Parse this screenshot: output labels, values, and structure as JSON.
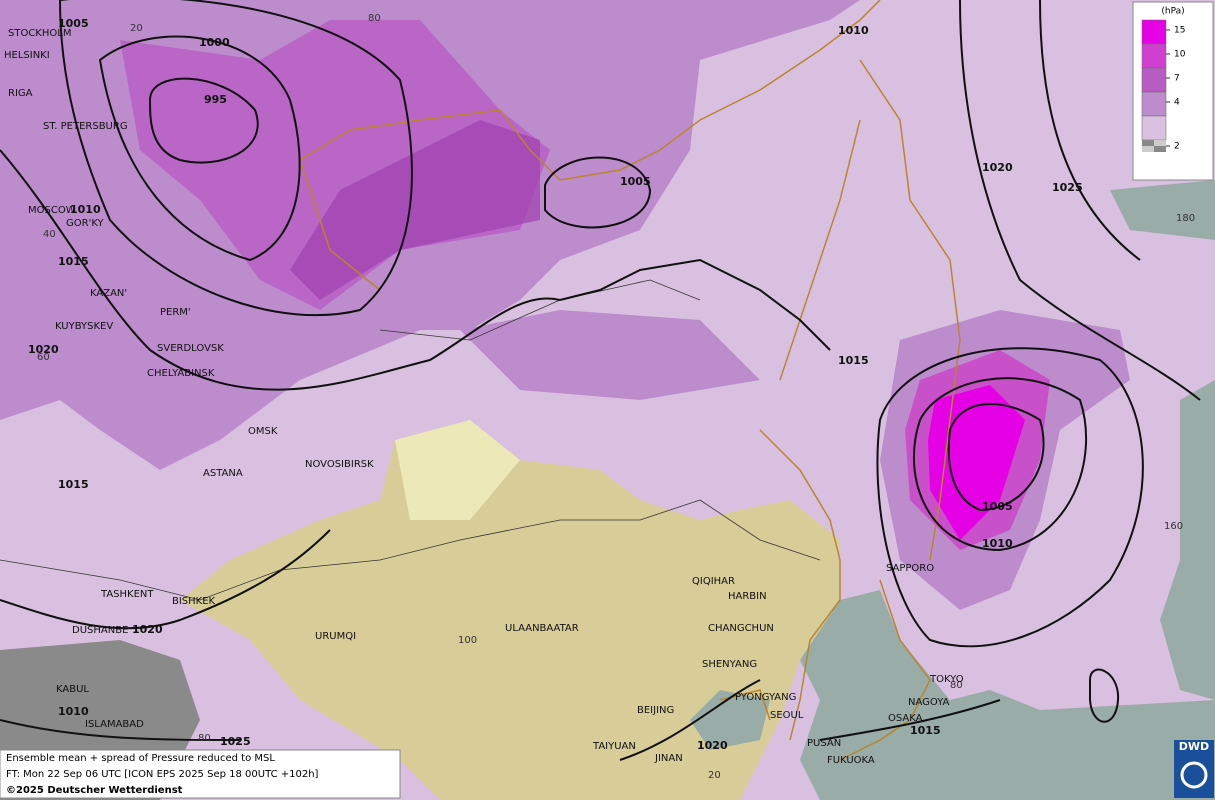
{
  "map": {
    "cities": [
      "STOCKHOLM",
      "HELSINKI",
      "RIGA",
      "ST. PETERSBURG",
      "MOSCOW",
      "GOR'KY",
      "KAZAN'",
      "PERM'",
      "KUYBYSKEV",
      "SVERDLOVSK",
      "CHELYABINSK",
      "OMSK",
      "NOVOSIBIRSK",
      "ASTANA",
      "TASHKENT",
      "BISHKEK",
      "DUSHANBE",
      "URUMQI",
      "ULAANBAATAR",
      "QIQIHAR",
      "HARBIN",
      "CHANGCHUN",
      "SHENYANG",
      "PYONGYANG",
      "SEOUL",
      "BEIJING",
      "KABUL",
      "ISLAMABAD",
      "TAIYUAN",
      "JINAN",
      "PUSAN",
      "FUKUOKA",
      "SAPPORO",
      "TOKYO",
      "NAGOYA",
      "OSAKA"
    ],
    "isobar_labels": [
      "1005",
      "1000",
      "995",
      "1010",
      "1015",
      "1020",
      "1015",
      "1020",
      "1010",
      "1025",
      "1005",
      "1010",
      "1020",
      "1025",
      "1015",
      "1005",
      "1010",
      "1020",
      "1015"
    ],
    "graticule_labels": [
      "20",
      "80",
      "40",
      "60",
      "100",
      "180",
      "160",
      "80",
      "20",
      "80"
    ],
    "legend": {
      "unit": "(hPa)",
      "ticks": [
        15,
        10,
        7,
        4,
        2
      ],
      "colors": [
        "#e600e6",
        "#d040d0",
        "#b85cc4",
        "#bd8ccd",
        "#d9c0e0"
      ]
    },
    "footer": [
      "Ensemble mean + spread of Pressure reduced to MSL",
      "FT: Mon 22 Sep 06 UTC [ICON EPS 2025 Sep 18 00UTC +102h]",
      "©2025 Deutscher Wetterdienst"
    ],
    "logo": "DWD"
  }
}
